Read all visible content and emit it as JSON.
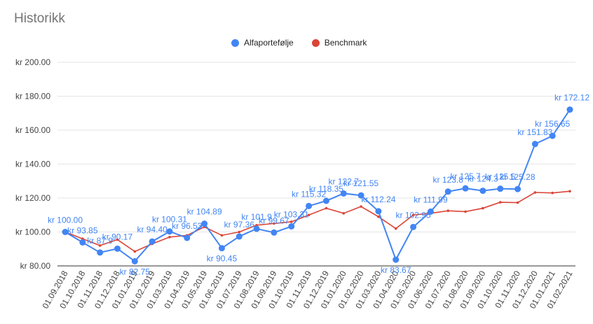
{
  "title": "Historikk",
  "colors": {
    "alfa": "#4285f4",
    "bench": "#db4437",
    "grid": "#e5e5e5",
    "axis": "#333333"
  },
  "chart_data": {
    "type": "line",
    "title": "Historikk",
    "y_tick_prefix": "kr",
    "ylim": [
      80,
      200
    ],
    "y_ticks": [
      "kr  80.00",
      "kr 100.00",
      "kr 120.00",
      "kr 140.00",
      "kr 160.00",
      "kr 180.00",
      "kr 200.00"
    ],
    "y_tick_values": [
      80,
      100,
      120,
      140,
      160,
      180,
      200
    ],
    "grid": true,
    "legend": "top-center",
    "categories": [
      "01.09.2018",
      "01.10.2018",
      "01.11.2018",
      "01.12.2018",
      "01.01.2019",
      "01.02.2019",
      "01.03.2019",
      "01.04.2019",
      "01.05.2019",
      "01.06.2019",
      "01.07.2019",
      "01.08.2019",
      "01.09.2019",
      "01.10.2019",
      "01.11.2019",
      "01.12.2019",
      "01.01.2020",
      "01.02.2020",
      "01.03.2020",
      "01.04.2020",
      "01.05.2020",
      "01.06.2020",
      "01.07.2020",
      "01.08.2020",
      "01.09.2020",
      "01.10.2020",
      "01.11.2020",
      "01.12.2020",
      "01.01.2021",
      "01.02.2021"
    ],
    "series": [
      {
        "name": "Alfaportefølje",
        "values": [
          100.0,
          93.85,
          87.9,
          90.17,
          82.75,
          94.4,
          100.31,
          96.53,
          104.89,
          90.45,
          97.36,
          101.9,
          99.67,
          103.31,
          115.32,
          118.35,
          122.7,
          121.55,
          112.24,
          83.67,
          102.95,
          111.99,
          123.8,
          125.7,
          124.3,
          125.5,
          125.28,
          151.83,
          156.65,
          172.12
        ],
        "labels": [
          "kr 100.00",
          "kr 93.85",
          "kr 87.9",
          "kr 90.17",
          "kr 82.75",
          "kr 94.40",
          "kr 100.31",
          "kr 96.53",
          "kr 104.89",
          "kr 90.45",
          "kr 97.36",
          "kr 101.9",
          "kr 99.67",
          "kr 103.31",
          "kr 115.32",
          "kr 118.35",
          "kr 122.7",
          "kr 121.55",
          "kr 112.24",
          "kr 83.67",
          "kr 102.95",
          "kr 111.99",
          "kr 123.8",
          "kr 125.7",
          "kr 124.3",
          "kr 125.5",
          "kr 125.28",
          "kr 151.83",
          "kr 156.65",
          "kr 172.12"
        ]
      },
      {
        "name": "Benchmark",
        "values": [
          100,
          96,
          92,
          95.5,
          88.5,
          93,
          97,
          98,
          103,
          98,
          100,
          104,
          105,
          106,
          110,
          114,
          111,
          115,
          109,
          102,
          110,
          111,
          112.5,
          112,
          114,
          117.5,
          117.3,
          123.3,
          123,
          124
        ]
      }
    ]
  }
}
